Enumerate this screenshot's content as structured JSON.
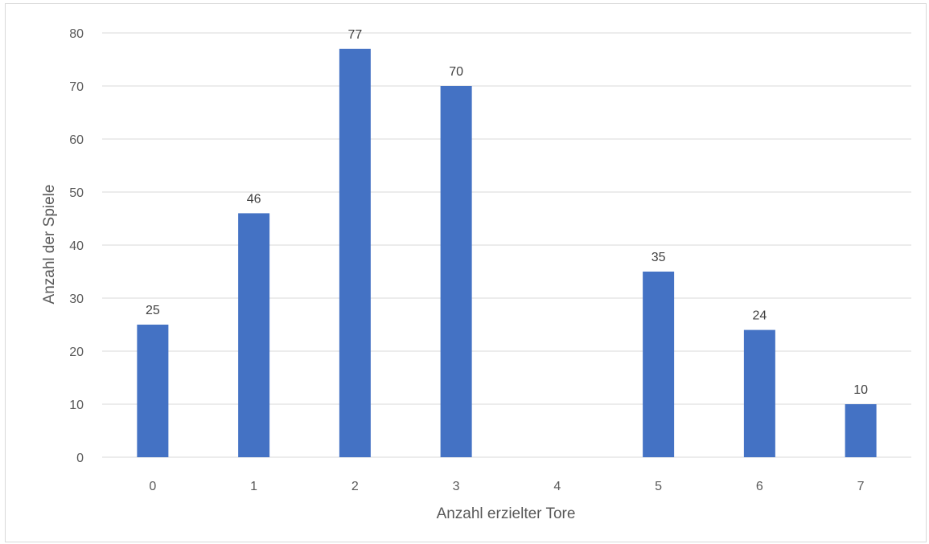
{
  "chart_data": {
    "type": "bar",
    "categories": [
      "0",
      "1",
      "2",
      "3",
      "4",
      "5",
      "6",
      "7"
    ],
    "values": [
      25,
      46,
      77,
      70,
      null,
      35,
      24,
      10
    ],
    "data_labels": [
      "25",
      "46",
      "77",
      "70",
      "",
      "35",
      "24",
      "10"
    ],
    "title": "",
    "xlabel": "Anzahl erzielter Tore",
    "ylabel": "Anzahl der Spiele",
    "ylim": [
      0,
      80
    ],
    "yticks": [
      "0",
      "10",
      "20",
      "30",
      "40",
      "50",
      "60",
      "70",
      "80"
    ],
    "grid": true,
    "legend": "none",
    "bar_color": "#4472C4",
    "grid_color": "#d9d9d9"
  }
}
